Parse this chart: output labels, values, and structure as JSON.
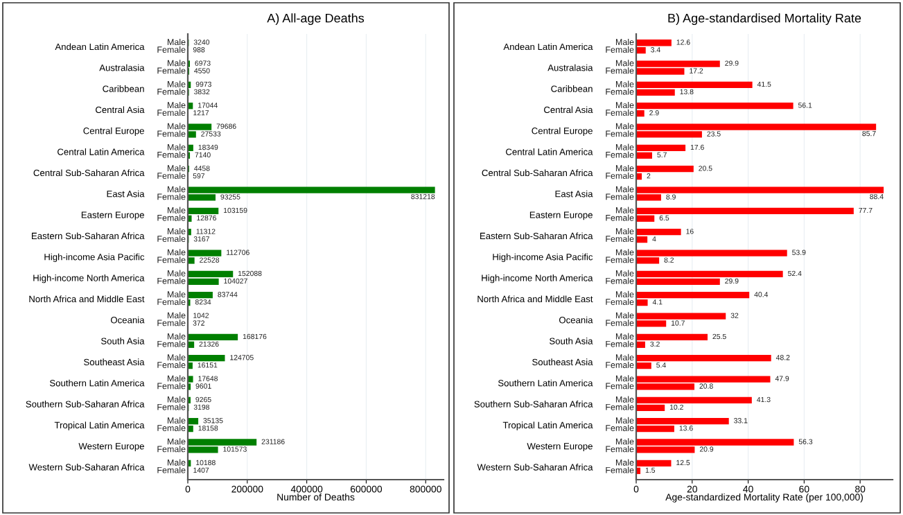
{
  "chart_data": [
    {
      "type": "bar",
      "orientation": "horizontal",
      "title": "A) All-age Deaths",
      "xlabel": "Number of Deaths",
      "categories": [
        "Andean Latin America",
        "Australasia",
        "Caribbean",
        "Central Asia",
        "Central Europe",
        "Central Latin America",
        "Central Sub-Saharan Africa",
        "East Asia",
        "Eastern Europe",
        "Eastern Sub-Saharan Africa",
        "High-income Asia Pacific",
        "High-income North America",
        "North Africa and Middle East",
        "Oceania",
        "South Asia",
        "Southeast Asia",
        "Southern Latin America",
        "Southern Sub-Saharan Africa",
        "Tropical Latin America",
        "Western Europe",
        "Western Sub-Saharan Africa"
      ],
      "series": [
        {
          "name": "Male",
          "color": "#007f00",
          "values": [
            3240,
            6973,
            9973,
            17044,
            79686,
            18349,
            4458,
            831218,
            103159,
            11312,
            112706,
            152088,
            83744,
            1042,
            168176,
            124705,
            17648,
            9265,
            35135,
            231186,
            10188
          ]
        },
        {
          "name": "Female",
          "color": "#007f00",
          "values": [
            988,
            4550,
            3832,
            1217,
            27533,
            7140,
            597,
            93255,
            12876,
            3167,
            22528,
            104027,
            8234,
            372,
            21326,
            16151,
            9601,
            3198,
            18158,
            101573,
            1407
          ]
        }
      ],
      "xlim": [
        0,
        860000
      ],
      "xticks": [
        0,
        200000,
        400000,
        600000,
        800000
      ],
      "grid": "x",
      "data_labels": true
    },
    {
      "type": "bar",
      "orientation": "horizontal",
      "title": "B) Age-standardised Mortality Rate",
      "xlabel": "Age-standardized Mortality Rate (per 100,000)",
      "categories": [
        "Andean Latin America",
        "Australasia",
        "Caribbean",
        "Central Asia",
        "Central Europe",
        "Central Latin America",
        "Central Sub-Saharan Africa",
        "East Asia",
        "Eastern Europe",
        "Eastern Sub-Saharan Africa",
        "High-income Asia Pacific",
        "High-income North America",
        "North Africa and Middle East",
        "Oceania",
        "South Asia",
        "Southeast Asia",
        "Southern Latin America",
        "Southern Sub-Saharan Africa",
        "Tropical Latin America",
        "Western Europe",
        "Western Sub-Saharan Africa"
      ],
      "series": [
        {
          "name": "Male",
          "color": "#ff0000",
          "values": [
            12.6,
            29.9,
            41.5,
            56.1,
            85.7,
            17.6,
            20.5,
            88.4,
            77.7,
            16,
            53.9,
            52.4,
            40.4,
            32,
            25.5,
            48.2,
            47.9,
            41.3,
            33.1,
            56.3,
            12.5
          ]
        },
        {
          "name": "Female",
          "color": "#ff0000",
          "values": [
            3.4,
            17.2,
            13.8,
            2.9,
            23.5,
            5.7,
            2,
            8.9,
            6.5,
            4,
            8.2,
            29.9,
            4.1,
            10.7,
            3.2,
            5.4,
            20.8,
            10.2,
            13.6,
            20.9,
            1.5
          ]
        }
      ],
      "xlim": [
        0,
        91.6
      ],
      "xticks": [
        0,
        20,
        40,
        60,
        80
      ],
      "grid": "x",
      "data_labels": true
    }
  ]
}
